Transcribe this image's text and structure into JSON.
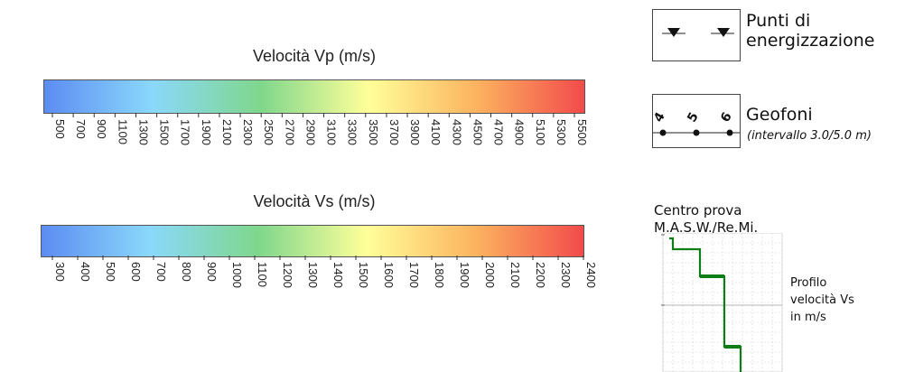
{
  "vp_scale": {
    "title": "Velocità Vp (m/s)",
    "ticks": [
      "500",
      "700",
      "900",
      "1100",
      "1300",
      "1500",
      "1700",
      "1900",
      "2100",
      "2300",
      "2500",
      "2700",
      "2900",
      "3100",
      "3300",
      "3500",
      "3700",
      "3900",
      "4100",
      "4300",
      "4500",
      "4700",
      "4900",
      "5100",
      "5300",
      "5500"
    ]
  },
  "vs_scale": {
    "title": "Velocità Vs (m/s)",
    "ticks": [
      "300",
      "400",
      "500",
      "600",
      "700",
      "800",
      "900",
      "1000",
      "1100",
      "1200",
      "1300",
      "1400",
      "1500",
      "1600",
      "1700",
      "1800",
      "1900",
      "2000",
      "2100",
      "2200",
      "2300",
      "2400"
    ]
  },
  "legend": {
    "shot_points_label": "Punti di\nenergizzazione",
    "geophones_label": "Geofoni",
    "geophones_interval": "(intervallo 3.0/5.0 m)",
    "geophone_numbers": [
      "4",
      "5",
      "6"
    ],
    "masw_label": "Centro prova\nM.A.S.W./Re.Mi.",
    "profile_label": "Profilo\nvelocità Vs\nin m/s"
  },
  "colors": {
    "gradient": [
      "#5c8cf2",
      "#8ad8fb",
      "#7fd78c",
      "#ffff99",
      "#fcb35f",
      "#f24b4b"
    ],
    "profile_line": "#0e7d16",
    "shot_marker": "#111111"
  }
}
